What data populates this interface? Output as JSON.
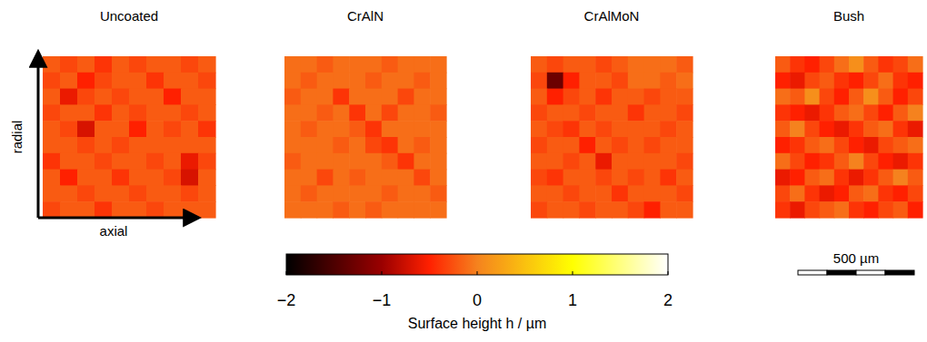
{
  "chart_data": {
    "type": "heatmap",
    "x_label": "axial",
    "y_label": "radial",
    "panels": [
      {
        "title": "Uncoated",
        "cells": [
          [
            -0.2,
            -0.3,
            -0.2,
            -0.4,
            -0.2,
            -0.3,
            -0.2,
            -0.2,
            -0.3,
            -0.2
          ],
          [
            -0.3,
            -0.2,
            -0.5,
            -0.3,
            -0.2,
            -0.2,
            -0.4,
            -0.2,
            -0.2,
            -0.3
          ],
          [
            -0.2,
            -0.6,
            -0.3,
            -0.2,
            -0.3,
            -0.2,
            -0.2,
            -0.5,
            -0.2,
            -0.2
          ],
          [
            -0.3,
            -0.2,
            -0.2,
            -0.4,
            -0.2,
            -0.3,
            -0.2,
            -0.2,
            -0.3,
            -0.2
          ],
          [
            -0.2,
            -0.3,
            -0.7,
            -0.2,
            -0.2,
            -0.5,
            -0.2,
            -0.3,
            -0.2,
            -0.4
          ],
          [
            -0.2,
            -0.2,
            -0.3,
            -0.2,
            -0.3,
            -0.2,
            -0.2,
            -0.2,
            -0.2,
            -0.2
          ],
          [
            -0.4,
            -0.2,
            -0.2,
            -0.3,
            -0.2,
            -0.2,
            -0.3,
            -0.2,
            -0.6,
            -0.3
          ],
          [
            -0.2,
            -0.5,
            -0.2,
            -0.2,
            -0.4,
            -0.2,
            -0.2,
            -0.3,
            -0.7,
            -0.2
          ],
          [
            -0.2,
            -0.2,
            -0.3,
            -0.2,
            -0.2,
            -0.3,
            -0.2,
            -0.2,
            -0.3,
            -0.2
          ],
          [
            -0.3,
            -0.2,
            -0.2,
            -0.4,
            -0.2,
            -0.2,
            -0.3,
            -0.2,
            -0.2,
            -0.2
          ]
        ]
      },
      {
        "title": "CrAlN",
        "cells": [
          [
            -0.1,
            -0.1,
            -0.2,
            -0.1,
            -0.1,
            -0.1,
            -0.2,
            -0.1,
            -0.1,
            -0.1
          ],
          [
            -0.1,
            -0.2,
            -0.1,
            -0.1,
            -0.1,
            -0.2,
            -0.1,
            -0.1,
            -0.2,
            -0.1
          ],
          [
            -0.2,
            -0.1,
            -0.1,
            -0.4,
            -0.1,
            -0.1,
            -0.1,
            -0.3,
            -0.1,
            -0.1
          ],
          [
            -0.1,
            -0.1,
            -0.2,
            -0.1,
            -0.4,
            -0.1,
            -0.3,
            -0.1,
            -0.1,
            -0.2
          ],
          [
            -0.1,
            -0.2,
            -0.1,
            -0.1,
            -0.2,
            -0.4,
            -0.1,
            -0.1,
            -0.1,
            -0.1
          ],
          [
            -0.1,
            -0.1,
            -0.1,
            -0.2,
            -0.1,
            -0.3,
            -0.4,
            -0.1,
            -0.2,
            -0.1
          ],
          [
            -0.2,
            -0.1,
            -0.1,
            -0.1,
            -0.1,
            -0.1,
            -0.2,
            -0.4,
            -0.1,
            -0.1
          ],
          [
            -0.1,
            -0.1,
            -0.3,
            -0.1,
            -0.2,
            -0.1,
            -0.1,
            -0.1,
            -0.3,
            -0.1
          ],
          [
            -0.1,
            -0.2,
            -0.1,
            -0.1,
            -0.1,
            -0.1,
            -0.2,
            -0.1,
            -0.1,
            -0.2
          ],
          [
            -0.1,
            -0.1,
            -0.1,
            -0.2,
            -0.1,
            -0.2,
            -0.1,
            -0.1,
            -0.1,
            -0.1
          ]
        ]
      },
      {
        "title": "CrAlMoN",
        "cells": [
          [
            -0.2,
            -0.3,
            -0.2,
            -0.2,
            -0.3,
            -0.2,
            -0.1,
            -0.1,
            -0.1,
            -0.2
          ],
          [
            -0.3,
            -1.3,
            -0.5,
            -0.2,
            -0.2,
            -0.3,
            -0.1,
            -0.1,
            -0.2,
            -0.1
          ],
          [
            -0.2,
            -0.5,
            -0.3,
            -0.2,
            -0.4,
            -0.2,
            -0.2,
            -0.3,
            -0.2,
            -0.2
          ],
          [
            -0.3,
            -0.2,
            -0.2,
            -0.3,
            -0.2,
            -0.2,
            -0.4,
            -0.2,
            -0.2,
            -0.3
          ],
          [
            -0.2,
            -0.3,
            -0.4,
            -0.2,
            -0.3,
            -0.2,
            -0.2,
            -0.2,
            -0.3,
            -0.2
          ],
          [
            -0.3,
            -0.2,
            -0.2,
            -0.5,
            -0.2,
            -0.3,
            -0.2,
            -0.3,
            -0.2,
            -0.2
          ],
          [
            -0.2,
            -0.2,
            -0.3,
            -0.2,
            -0.6,
            -0.2,
            -0.2,
            -0.2,
            -0.2,
            -0.3
          ],
          [
            -0.3,
            -0.4,
            -0.2,
            -0.2,
            -0.3,
            -0.2,
            -0.3,
            -0.2,
            -0.4,
            -0.2
          ],
          [
            -0.2,
            -0.2,
            -0.3,
            -0.2,
            -0.2,
            -0.4,
            -0.2,
            -0.2,
            -0.2,
            -0.3
          ],
          [
            -0.3,
            -0.2,
            -0.2,
            -0.3,
            -0.2,
            -0.2,
            -0.3,
            -0.5,
            -0.2,
            -0.2
          ]
        ]
      },
      {
        "title": "Bush",
        "cells": [
          [
            -0.2,
            -0.4,
            -0.5,
            -0.3,
            -0.1,
            0.1,
            -0.2,
            -0.4,
            -0.3,
            -0.1
          ],
          [
            -0.5,
            -0.6,
            -0.3,
            -0.2,
            -0.4,
            -0.5,
            -0.3,
            -0.1,
            -0.4,
            -0.5
          ],
          [
            -0.1,
            -0.2,
            0.1,
            -0.3,
            -0.5,
            -0.2,
            0.1,
            -0.2,
            -0.5,
            -0.3
          ],
          [
            -0.4,
            -0.5,
            -0.6,
            -0.4,
            -0.2,
            -0.1,
            -0.3,
            -0.5,
            -0.2,
            0.0
          ],
          [
            -0.2,
            0.0,
            -0.3,
            -0.5,
            -0.6,
            -0.4,
            -0.2,
            -0.1,
            -0.4,
            -0.6
          ],
          [
            -0.5,
            -0.4,
            -0.2,
            -0.1,
            -0.3,
            -0.5,
            -0.6,
            -0.3,
            -0.2,
            -0.1
          ],
          [
            -0.1,
            -0.3,
            -0.5,
            -0.4,
            -0.2,
            0.0,
            -0.3,
            -0.5,
            -0.6,
            -0.4
          ],
          [
            -0.6,
            -0.5,
            -0.2,
            -0.1,
            -0.4,
            -0.6,
            -0.4,
            -0.2,
            0.0,
            -0.2
          ],
          [
            -0.3,
            -0.1,
            -0.4,
            -0.6,
            -0.5,
            -0.2,
            -0.1,
            -0.4,
            -0.5,
            -0.3
          ],
          [
            -0.4,
            -0.6,
            -0.3,
            -0.2,
            -0.1,
            -0.4,
            -0.5,
            -0.3,
            -0.2,
            -0.5
          ]
        ]
      }
    ],
    "colorbar": {
      "range": [
        -2,
        2
      ],
      "ticks": [
        -2,
        -1,
        0,
        1,
        2
      ],
      "label": "Surface height h / µm"
    },
    "scale_bar": "500 µm"
  }
}
